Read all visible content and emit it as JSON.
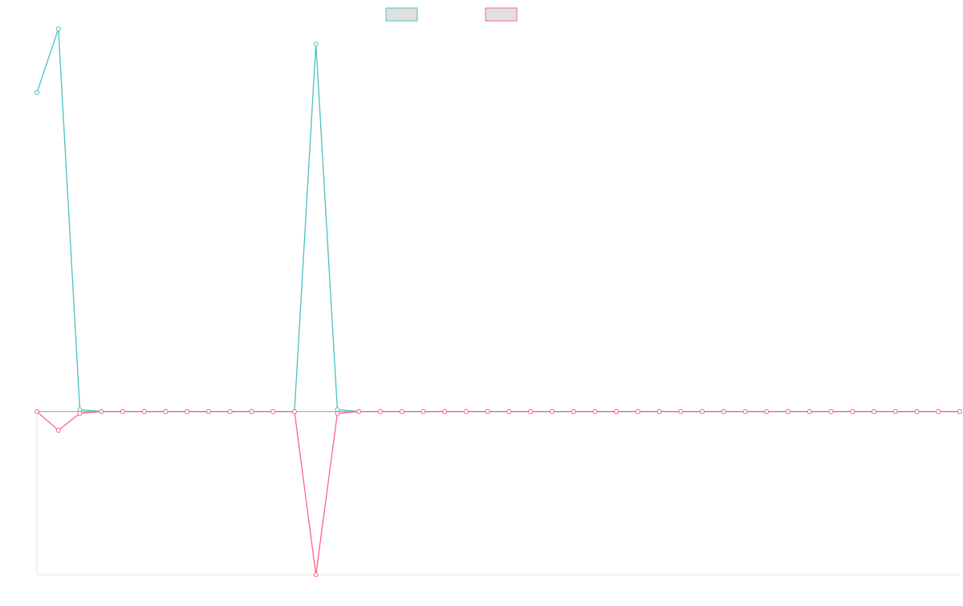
{
  "chart_data": {
    "type": "line",
    "title": "",
    "xlabel": "",
    "ylabel": "",
    "grid": false,
    "legend_position": "top-center",
    "x": [
      0,
      1,
      2,
      3,
      4,
      5,
      6,
      7,
      8,
      9,
      10,
      11,
      12,
      13,
      14,
      15,
      16,
      17,
      18,
      19,
      20,
      21,
      22,
      23,
      24,
      25,
      26,
      27,
      28,
      29,
      30,
      31,
      32,
      33,
      34,
      35,
      36,
      37,
      38,
      39,
      40,
      41,
      42,
      43
    ],
    "xlim": [
      0,
      43
    ],
    "ylim": [
      -4.35,
      10.2
    ],
    "series": [
      {
        "name": "",
        "color": "#4bc0c0",
        "fill": "#e0e0e0",
        "values": [
          8.5,
          10.2,
          0.05,
          0,
          0,
          0,
          0,
          0,
          0,
          0,
          0,
          0,
          0,
          9.8,
          0.05,
          0,
          0,
          0,
          0,
          0,
          0,
          0,
          0,
          0,
          0,
          0,
          0,
          0,
          0,
          0,
          0,
          0,
          0,
          0,
          0,
          0,
          0,
          0,
          0,
          0,
          0,
          0,
          0,
          0
        ]
      },
      {
        "name": "",
        "color": "#ff6384",
        "fill": "#e0e0e0",
        "values": [
          0,
          -0.5,
          -0.05,
          0,
          0,
          0,
          0,
          0,
          0,
          0,
          0,
          0,
          0,
          -4.35,
          -0.05,
          0,
          0,
          0,
          0,
          0,
          0,
          0,
          0,
          0,
          0,
          0,
          0,
          0,
          0,
          0,
          0,
          0,
          0,
          0,
          0,
          0,
          0,
          0,
          0,
          0,
          0,
          0,
          0,
          0
        ]
      }
    ]
  }
}
